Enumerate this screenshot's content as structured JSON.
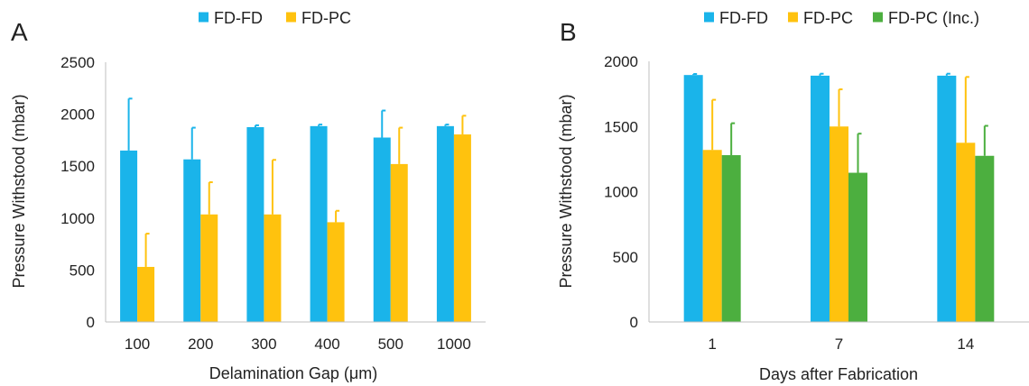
{
  "chart_data": [
    {
      "panel_label": "A",
      "type": "bar",
      "xlabel": "Delamination Gap (μm)",
      "ylabel": "Pressure Withstood (mbar)",
      "ylim": [
        0,
        2500
      ],
      "yticks": [
        "0",
        "500",
        "1000",
        "1500",
        "2000",
        "2500"
      ],
      "categories": [
        "100",
        "200",
        "300",
        "400",
        "500",
        "1000"
      ],
      "series": [
        {
          "name": "FD-FD",
          "color": "#1AB4EA",
          "values": [
            1650,
            1565,
            1875,
            1885,
            1775,
            1885
          ],
          "errors": [
            500,
            305,
            18,
            15,
            260,
            15
          ]
        },
        {
          "name": "FD-PC",
          "color": "#FFC20E",
          "values": [
            530,
            1035,
            1035,
            960,
            1520,
            1805
          ],
          "errors": [
            320,
            310,
            525,
            110,
            350,
            180
          ]
        }
      ],
      "grid": false,
      "legend": "top-center"
    },
    {
      "panel_label": "B",
      "type": "bar",
      "xlabel": "Days after Fabrication",
      "ylabel": "Pressure Withstood (mbar)",
      "ylim": [
        0,
        2000
      ],
      "yticks": [
        "0",
        "500",
        "1000",
        "1500",
        "2000"
      ],
      "categories": [
        "1",
        "7",
        "14"
      ],
      "series": [
        {
          "name": "FD-FD",
          "color": "#1AB4EA",
          "values": [
            1895,
            1890,
            1890
          ],
          "errors": [
            8,
            15,
            15
          ]
        },
        {
          "name": "FD-PC",
          "color": "#FFC20E",
          "values": [
            1320,
            1500,
            1375
          ],
          "errors": [
            385,
            285,
            505
          ]
        },
        {
          "name": "FD-PC (Inc.)",
          "color": "#4CAF3F",
          "values": [
            1280,
            1145,
            1275
          ],
          "errors": [
            245,
            300,
            230
          ]
        }
      ],
      "grid": false,
      "legend": "top-center"
    }
  ]
}
